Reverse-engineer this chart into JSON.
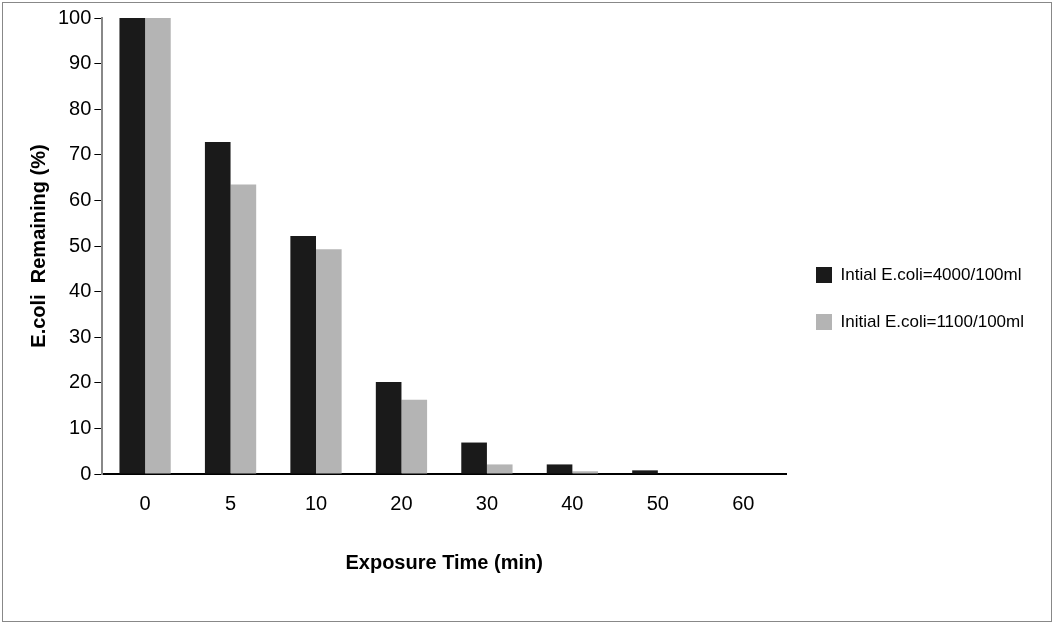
{
  "chart_data": {
    "type": "bar",
    "xlabel": "Exposure Time (min)",
    "ylabel": "E.coli  Remaining (%)",
    "categories": [
      "0",
      "5",
      "10",
      "20",
      "30",
      "40",
      "50",
      "60"
    ],
    "series": [
      {
        "name": "Intial E.coli=4000/100ml",
        "color": "#1a1a1a",
        "values": [
          100,
          72.8,
          52.2,
          20.2,
          6.9,
          2.1,
          0.8,
          0
        ]
      },
      {
        "name": "Initial E.coli=1100/100ml",
        "color": "#b4b4b4",
        "values": [
          100,
          63.5,
          49.3,
          16.3,
          2.1,
          0.6,
          0,
          0
        ]
      }
    ],
    "ylim": [
      0,
      100
    ],
    "yticks": [
      0,
      10,
      20,
      30,
      40,
      50,
      60,
      70,
      80,
      90,
      100
    ],
    "grid": false,
    "legend": "right"
  }
}
